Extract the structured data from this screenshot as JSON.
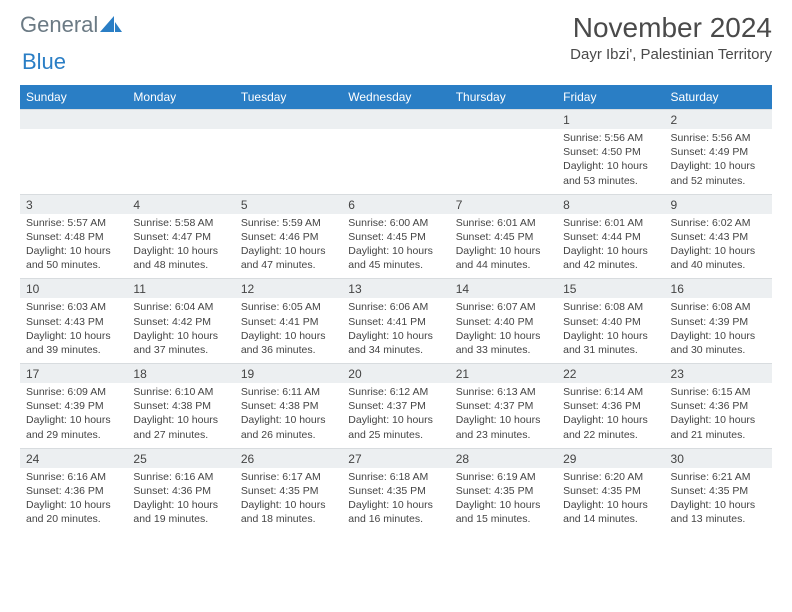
{
  "logo": {
    "text1": "General",
    "text2": "Blue"
  },
  "title": "November 2024",
  "location": "Dayr Ibzi', Palestinian Territory",
  "colors": {
    "header_bg": "#2a7ec5",
    "header_text": "#ffffff",
    "band_bg": "#eceff1",
    "text": "#444444"
  },
  "daysOfWeek": [
    "Sunday",
    "Monday",
    "Tuesday",
    "Wednesday",
    "Thursday",
    "Friday",
    "Saturday"
  ],
  "weeks": [
    [
      {
        "n": "",
        "sr": "",
        "ss": "",
        "dl": ""
      },
      {
        "n": "",
        "sr": "",
        "ss": "",
        "dl": ""
      },
      {
        "n": "",
        "sr": "",
        "ss": "",
        "dl": ""
      },
      {
        "n": "",
        "sr": "",
        "ss": "",
        "dl": ""
      },
      {
        "n": "",
        "sr": "",
        "ss": "",
        "dl": ""
      },
      {
        "n": "1",
        "sr": "Sunrise: 5:56 AM",
        "ss": "Sunset: 4:50 PM",
        "dl": "Daylight: 10 hours and 53 minutes."
      },
      {
        "n": "2",
        "sr": "Sunrise: 5:56 AM",
        "ss": "Sunset: 4:49 PM",
        "dl": "Daylight: 10 hours and 52 minutes."
      }
    ],
    [
      {
        "n": "3",
        "sr": "Sunrise: 5:57 AM",
        "ss": "Sunset: 4:48 PM",
        "dl": "Daylight: 10 hours and 50 minutes."
      },
      {
        "n": "4",
        "sr": "Sunrise: 5:58 AM",
        "ss": "Sunset: 4:47 PM",
        "dl": "Daylight: 10 hours and 48 minutes."
      },
      {
        "n": "5",
        "sr": "Sunrise: 5:59 AM",
        "ss": "Sunset: 4:46 PM",
        "dl": "Daylight: 10 hours and 47 minutes."
      },
      {
        "n": "6",
        "sr": "Sunrise: 6:00 AM",
        "ss": "Sunset: 4:45 PM",
        "dl": "Daylight: 10 hours and 45 minutes."
      },
      {
        "n": "7",
        "sr": "Sunrise: 6:01 AM",
        "ss": "Sunset: 4:45 PM",
        "dl": "Daylight: 10 hours and 44 minutes."
      },
      {
        "n": "8",
        "sr": "Sunrise: 6:01 AM",
        "ss": "Sunset: 4:44 PM",
        "dl": "Daylight: 10 hours and 42 minutes."
      },
      {
        "n": "9",
        "sr": "Sunrise: 6:02 AM",
        "ss": "Sunset: 4:43 PM",
        "dl": "Daylight: 10 hours and 40 minutes."
      }
    ],
    [
      {
        "n": "10",
        "sr": "Sunrise: 6:03 AM",
        "ss": "Sunset: 4:43 PM",
        "dl": "Daylight: 10 hours and 39 minutes."
      },
      {
        "n": "11",
        "sr": "Sunrise: 6:04 AM",
        "ss": "Sunset: 4:42 PM",
        "dl": "Daylight: 10 hours and 37 minutes."
      },
      {
        "n": "12",
        "sr": "Sunrise: 6:05 AM",
        "ss": "Sunset: 4:41 PM",
        "dl": "Daylight: 10 hours and 36 minutes."
      },
      {
        "n": "13",
        "sr": "Sunrise: 6:06 AM",
        "ss": "Sunset: 4:41 PM",
        "dl": "Daylight: 10 hours and 34 minutes."
      },
      {
        "n": "14",
        "sr": "Sunrise: 6:07 AM",
        "ss": "Sunset: 4:40 PM",
        "dl": "Daylight: 10 hours and 33 minutes."
      },
      {
        "n": "15",
        "sr": "Sunrise: 6:08 AM",
        "ss": "Sunset: 4:40 PM",
        "dl": "Daylight: 10 hours and 31 minutes."
      },
      {
        "n": "16",
        "sr": "Sunrise: 6:08 AM",
        "ss": "Sunset: 4:39 PM",
        "dl": "Daylight: 10 hours and 30 minutes."
      }
    ],
    [
      {
        "n": "17",
        "sr": "Sunrise: 6:09 AM",
        "ss": "Sunset: 4:39 PM",
        "dl": "Daylight: 10 hours and 29 minutes."
      },
      {
        "n": "18",
        "sr": "Sunrise: 6:10 AM",
        "ss": "Sunset: 4:38 PM",
        "dl": "Daylight: 10 hours and 27 minutes."
      },
      {
        "n": "19",
        "sr": "Sunrise: 6:11 AM",
        "ss": "Sunset: 4:38 PM",
        "dl": "Daylight: 10 hours and 26 minutes."
      },
      {
        "n": "20",
        "sr": "Sunrise: 6:12 AM",
        "ss": "Sunset: 4:37 PM",
        "dl": "Daylight: 10 hours and 25 minutes."
      },
      {
        "n": "21",
        "sr": "Sunrise: 6:13 AM",
        "ss": "Sunset: 4:37 PM",
        "dl": "Daylight: 10 hours and 23 minutes."
      },
      {
        "n": "22",
        "sr": "Sunrise: 6:14 AM",
        "ss": "Sunset: 4:36 PM",
        "dl": "Daylight: 10 hours and 22 minutes."
      },
      {
        "n": "23",
        "sr": "Sunrise: 6:15 AM",
        "ss": "Sunset: 4:36 PM",
        "dl": "Daylight: 10 hours and 21 minutes."
      }
    ],
    [
      {
        "n": "24",
        "sr": "Sunrise: 6:16 AM",
        "ss": "Sunset: 4:36 PM",
        "dl": "Daylight: 10 hours and 20 minutes."
      },
      {
        "n": "25",
        "sr": "Sunrise: 6:16 AM",
        "ss": "Sunset: 4:36 PM",
        "dl": "Daylight: 10 hours and 19 minutes."
      },
      {
        "n": "26",
        "sr": "Sunrise: 6:17 AM",
        "ss": "Sunset: 4:35 PM",
        "dl": "Daylight: 10 hours and 18 minutes."
      },
      {
        "n": "27",
        "sr": "Sunrise: 6:18 AM",
        "ss": "Sunset: 4:35 PM",
        "dl": "Daylight: 10 hours and 16 minutes."
      },
      {
        "n": "28",
        "sr": "Sunrise: 6:19 AM",
        "ss": "Sunset: 4:35 PM",
        "dl": "Daylight: 10 hours and 15 minutes."
      },
      {
        "n": "29",
        "sr": "Sunrise: 6:20 AM",
        "ss": "Sunset: 4:35 PM",
        "dl": "Daylight: 10 hours and 14 minutes."
      },
      {
        "n": "30",
        "sr": "Sunrise: 6:21 AM",
        "ss": "Sunset: 4:35 PM",
        "dl": "Daylight: 10 hours and 13 minutes."
      }
    ]
  ]
}
